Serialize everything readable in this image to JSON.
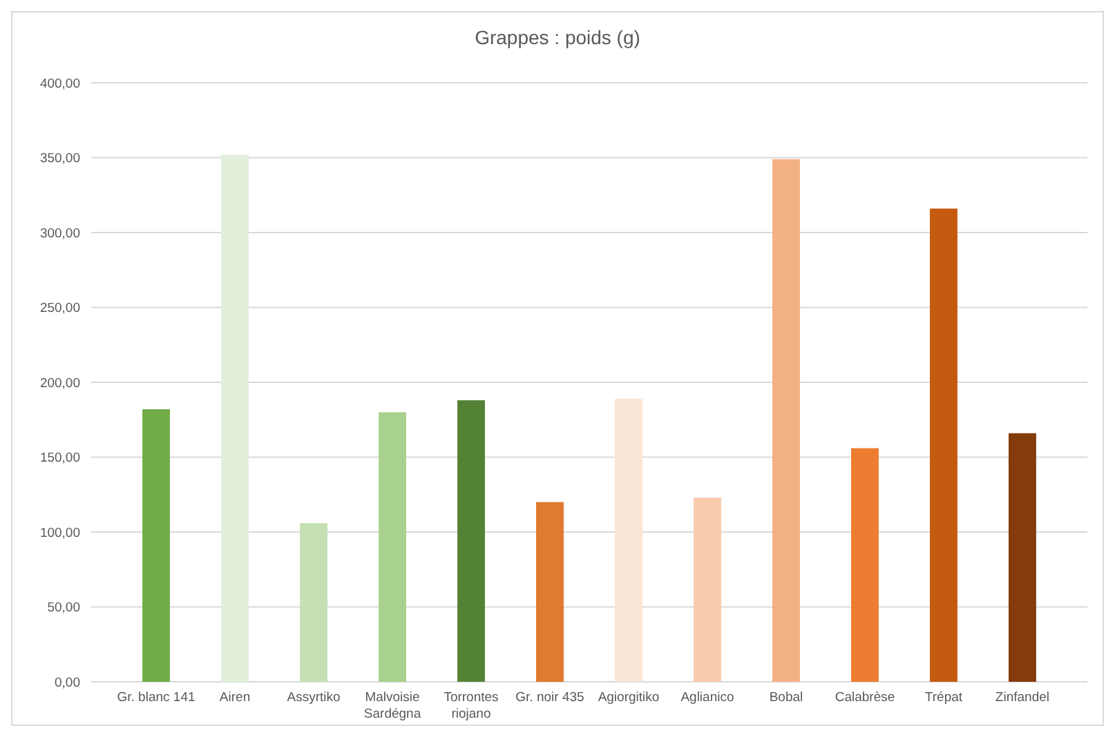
{
  "chart_data": {
    "type": "bar",
    "title": "Grappes : poids (g)",
    "categories": [
      "Gr. blanc 141",
      "Airen",
      "Assyrtiko",
      "Malvoisie Sardégna",
      "Torrontes riojano",
      "Gr. noir 435",
      "Agiorgitiko",
      "Aglianico",
      "Bobal",
      "Calabrèse",
      "Trépat",
      "Zinfandel"
    ],
    "values": [
      182,
      352,
      106,
      180,
      188,
      120,
      189,
      123,
      349,
      156,
      316,
      166
    ],
    "colors": [
      "#70ad47",
      "#e2efda",
      "#c6e0b4",
      "#a9d18e",
      "#548235",
      "#e07a2e",
      "#fbe5d6",
      "#f8cbad",
      "#f4b183",
      "#ed7d31",
      "#c55a11",
      "#843c0c"
    ],
    "ylim": [
      0,
      400
    ],
    "yticks": [
      {
        "value": 0,
        "label": "0,00"
      },
      {
        "value": 50,
        "label": "50,00"
      },
      {
        "value": 100,
        "label": "100,00"
      },
      {
        "value": 150,
        "label": "150,00"
      },
      {
        "value": 200,
        "label": "200,00"
      },
      {
        "value": 250,
        "label": "250,00"
      },
      {
        "value": 300,
        "label": "300,00"
      },
      {
        "value": 350,
        "label": "350,00"
      },
      {
        "value": 400,
        "label": "400,00"
      }
    ],
    "grid": "y"
  }
}
